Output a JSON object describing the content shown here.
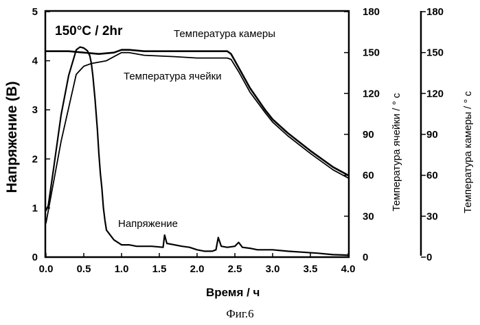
{
  "chart_data": {
    "type": "line",
    "title": "150°C / 2hr",
    "xlabel": "Время / ч",
    "ylabel_left": "Напряжение (В)",
    "ylabel_right": "Температура ячейки / ° с",
    "ylabel_right2": "Температура камеры / ° с",
    "xlim": [
      0,
      4.0
    ],
    "ylim_left": [
      0,
      5
    ],
    "ylim_right": [
      0,
      180
    ],
    "x_ticks": [
      "0.0",
      "0.5",
      "1.0",
      "1.5",
      "2.0",
      "2.5",
      "3.0",
      "3.5",
      "4.0"
    ],
    "y_left_ticks": [
      "0",
      "1",
      "2",
      "3",
      "4",
      "5"
    ],
    "y_right_ticks": [
      "0",
      "30",
      "60",
      "90",
      "120",
      "150",
      "180"
    ],
    "y_right2_ticks": [
      "0",
      "30",
      "60",
      "90",
      "120",
      "150",
      "180"
    ],
    "grid": false,
    "series": [
      {
        "name": "Температура камеры",
        "axis": "right",
        "x": [
          0,
          0.3,
          0.5,
          0.7,
          0.9,
          1.0,
          1.1,
          1.3,
          2.0,
          2.4,
          2.45,
          2.55,
          2.7,
          2.9,
          3.0,
          3.2,
          3.5,
          3.8,
          4.0
        ],
        "values": [
          151,
          151,
          150,
          149,
          150,
          152,
          152,
          151,
          151,
          151,
          149,
          139,
          124,
          108,
          101,
          91,
          78,
          66,
          60
        ]
      },
      {
        "name": "Температура ячейки",
        "axis": "right",
        "x": [
          0,
          0.05,
          0.2,
          0.4,
          0.5,
          0.6,
          0.7,
          0.8,
          0.9,
          1.0,
          1.1,
          1.3,
          1.7,
          2.0,
          2.4,
          2.45,
          2.55,
          2.7,
          2.9,
          3.0,
          3.2,
          3.5,
          3.8,
          4.0
        ],
        "values": [
          25,
          40,
          85,
          134,
          140,
          142,
          143,
          144,
          147,
          150,
          150,
          148,
          147,
          146,
          146,
          145,
          136,
          121,
          106,
          99,
          89,
          76,
          64,
          58
        ]
      },
      {
        "name": "Напряжение",
        "axis": "left",
        "x": [
          0,
          0.03,
          0.1,
          0.2,
          0.3,
          0.4,
          0.45,
          0.5,
          0.55,
          0.58,
          0.6,
          0.62,
          0.65,
          0.68,
          0.7,
          0.72,
          0.74,
          0.76,
          0.78,
          0.8,
          0.85,
          0.9,
          1.0,
          1.1,
          1.2,
          1.4,
          1.55,
          1.57,
          1.6,
          1.7,
          1.8,
          1.9,
          2.0,
          2.1,
          2.2,
          2.25,
          2.28,
          2.32,
          2.4,
          2.5,
          2.55,
          2.6,
          2.7,
          2.8,
          2.9,
          3.0,
          3.2,
          3.4,
          3.6,
          3.8,
          4.0
        ],
        "values": [
          0.95,
          1.05,
          1.8,
          2.9,
          3.7,
          4.22,
          4.28,
          4.26,
          4.2,
          4.1,
          3.95,
          3.7,
          3.2,
          2.6,
          2.1,
          1.7,
          1.4,
          1.0,
          0.75,
          0.55,
          0.45,
          0.35,
          0.25,
          0.25,
          0.22,
          0.22,
          0.2,
          0.45,
          0.28,
          0.25,
          0.22,
          0.2,
          0.15,
          0.12,
          0.12,
          0.15,
          0.4,
          0.22,
          0.2,
          0.22,
          0.3,
          0.2,
          0.18,
          0.15,
          0.15,
          0.15,
          0.12,
          0.1,
          0.08,
          0.05,
          0.04
        ]
      }
    ],
    "annotations": [
      "Температура камеры",
      "Температура ячейки",
      "Напряжение"
    ]
  },
  "caption": "Фиг.6"
}
